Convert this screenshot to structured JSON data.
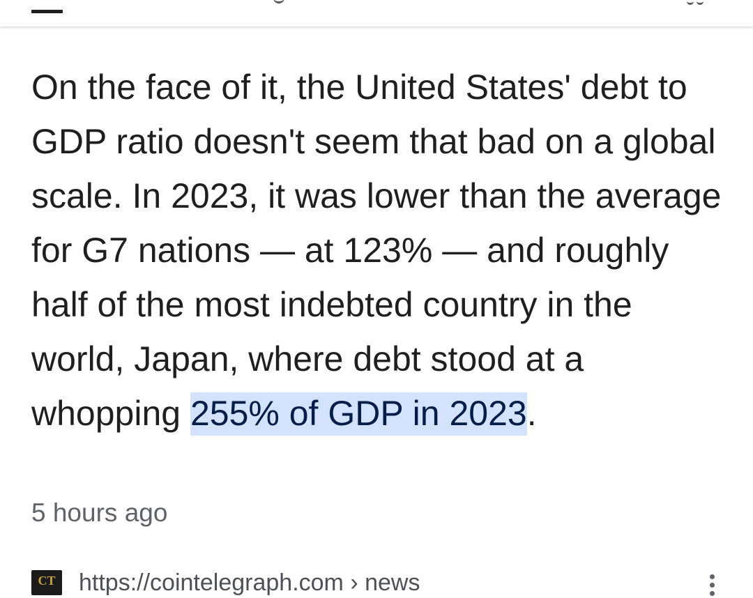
{
  "snippet": {
    "text_before": "On the face of it, the United States' debt to GDP ratio doesn't seem that bad on a global scale. In 2023, it was lower than the average for G7 nations — at 123% — and roughly half of the most indebted country in the world, Japan, where debt stood at a whopping ",
    "highlight": "255% of GDP in 2023",
    "text_after": "."
  },
  "timestamp": "5 hours ago",
  "result": {
    "url": "https://cointelegraph.com › news",
    "favicon_icon": "cointelegraph-logo-icon",
    "favicon_text": "CT",
    "menu_icon": "more-vert-icon"
  },
  "colors": {
    "highlight_bg": "#d3e3fd",
    "highlight_text": "#041e49",
    "text": "#1f1f1f",
    "muted": "#5f6368"
  }
}
